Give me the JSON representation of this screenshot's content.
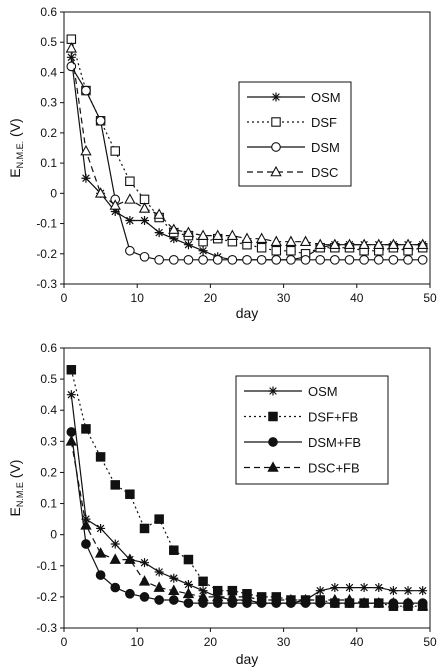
{
  "chart_data": [
    {
      "type": "line",
      "xlabel": "day",
      "ylabel_main": "E",
      "ylabel_sub": "N.M.E.",
      "ylabel_unit": " (V)",
      "xlim": [
        0,
        50
      ],
      "ylim": [
        -0.3,
        0.6
      ],
      "xticks": [
        "0",
        "10",
        "20",
        "30",
        "40",
        "50"
      ],
      "yticks": [
        "0.6",
        "0.5",
        "0.4",
        "0.3",
        "0.2",
        "0.1",
        "0",
        "-0.1",
        "-0.2",
        "-0.3"
      ],
      "grid": false,
      "legend_position": "center-right",
      "series": [
        {
          "name": "OSM",
          "marker": "star",
          "filled": false,
          "dash": "solid",
          "x": [
            1,
            3,
            5,
            7,
            9,
            11,
            13,
            15,
            17,
            19,
            21,
            23,
            25,
            27,
            29,
            31,
            33,
            35,
            37,
            39,
            41,
            43,
            45,
            47,
            49
          ],
          "y": [
            0.45,
            0.05,
            0.0,
            -0.06,
            -0.09,
            -0.09,
            -0.13,
            -0.15,
            -0.17,
            -0.19,
            -0.21,
            -0.22,
            -0.22,
            -0.22,
            -0.22,
            -0.22,
            -0.21,
            -0.18,
            -0.17,
            -0.17,
            -0.17,
            -0.17,
            -0.17,
            -0.17,
            -0.17
          ]
        },
        {
          "name": "DSF",
          "marker": "square",
          "filled": false,
          "dash": "dot",
          "x": [
            1,
            3,
            5,
            7,
            9,
            11,
            13,
            15,
            17,
            19,
            21,
            23,
            25,
            27,
            29,
            31,
            33,
            35,
            37,
            39,
            41,
            43,
            45,
            47,
            49
          ],
          "y": [
            0.51,
            0.34,
            0.24,
            0.14,
            0.04,
            -0.02,
            -0.08,
            -0.13,
            -0.14,
            -0.16,
            -0.15,
            -0.16,
            -0.17,
            -0.18,
            -0.19,
            -0.19,
            -0.2,
            -0.18,
            -0.18,
            -0.18,
            -0.19,
            -0.19,
            -0.18,
            -0.19,
            -0.18
          ]
        },
        {
          "name": "DSM",
          "marker": "circle",
          "filled": false,
          "dash": "solid",
          "x": [
            1,
            3,
            5,
            7,
            9,
            11,
            13,
            15,
            17,
            19,
            21,
            23,
            25,
            27,
            29,
            31,
            33,
            35,
            37,
            39,
            41,
            43,
            45,
            47,
            49
          ],
          "y": [
            0.42,
            0.34,
            0.24,
            -0.02,
            -0.19,
            -0.21,
            -0.22,
            -0.22,
            -0.22,
            -0.22,
            -0.22,
            -0.22,
            -0.22,
            -0.22,
            -0.22,
            -0.22,
            -0.22,
            -0.22,
            -0.22,
            -0.22,
            -0.22,
            -0.22,
            -0.22,
            -0.22,
            -0.22
          ]
        },
        {
          "name": "DSC",
          "marker": "triangle",
          "filled": false,
          "dash": "dash",
          "x": [
            1,
            3,
            5,
            7,
            9,
            11,
            13,
            15,
            17,
            19,
            21,
            23,
            25,
            27,
            29,
            31,
            33,
            35,
            37,
            39,
            41,
            43,
            45,
            47,
            49
          ],
          "y": [
            0.48,
            0.14,
            0.0,
            -0.04,
            -0.02,
            -0.05,
            -0.07,
            -0.12,
            -0.13,
            -0.14,
            -0.14,
            -0.14,
            -0.15,
            -0.15,
            -0.16,
            -0.16,
            -0.16,
            -0.17,
            -0.17,
            -0.17,
            -0.17,
            -0.17,
            -0.17,
            -0.17,
            -0.17
          ]
        }
      ]
    },
    {
      "type": "line",
      "xlabel": "day",
      "ylabel_main": "E",
      "ylabel_sub": "N.M.E",
      "ylabel_unit": " (V)",
      "xlim": [
        0,
        50
      ],
      "ylim": [
        -0.3,
        0.6
      ],
      "xticks": [
        "0",
        "10",
        "20",
        "30",
        "40",
        "50"
      ],
      "yticks": [
        "0.6",
        "0.5",
        "0.4",
        "0.3",
        "0.2",
        "0.1",
        "0",
        "-0.1",
        "-0.2",
        "-0.3"
      ],
      "grid": false,
      "legend_position": "top-right",
      "series": [
        {
          "name": "OSM",
          "marker": "star",
          "filled": false,
          "dash": "solid",
          "x": [
            1,
            3,
            5,
            7,
            9,
            11,
            13,
            15,
            17,
            19,
            21,
            23,
            25,
            27,
            29,
            31,
            33,
            35,
            37,
            39,
            41,
            43,
            45,
            47,
            49
          ],
          "y": [
            0.45,
            0.05,
            0.02,
            -0.03,
            -0.08,
            -0.09,
            -0.12,
            -0.14,
            -0.16,
            -0.18,
            -0.2,
            -0.21,
            -0.21,
            -0.22,
            -0.22,
            -0.22,
            -0.21,
            -0.18,
            -0.17,
            -0.17,
            -0.17,
            -0.17,
            -0.18,
            -0.18,
            -0.18
          ]
        },
        {
          "name": "DSF+FB",
          "marker": "square",
          "filled": true,
          "dash": "dot",
          "x": [
            1,
            3,
            5,
            7,
            9,
            11,
            13,
            15,
            17,
            19,
            21,
            23,
            25,
            27,
            29,
            31,
            33,
            35,
            37,
            39,
            41,
            43,
            45,
            47,
            49
          ],
          "y": [
            0.53,
            0.34,
            0.25,
            0.16,
            0.13,
            0.02,
            0.05,
            -0.05,
            -0.08,
            -0.15,
            -0.18,
            -0.18,
            -0.19,
            -0.2,
            -0.2,
            -0.21,
            -0.21,
            -0.21,
            -0.22,
            -0.22,
            -0.22,
            -0.22,
            -0.23,
            -0.23,
            -0.23
          ]
        },
        {
          "name": "DSM+FB",
          "marker": "circle",
          "filled": true,
          "dash": "solid",
          "x": [
            1,
            3,
            5,
            7,
            9,
            11,
            13,
            15,
            17,
            19,
            21,
            23,
            25,
            27,
            29,
            31,
            33,
            35,
            37,
            39,
            41,
            43,
            45,
            47,
            49
          ],
          "y": [
            0.33,
            -0.03,
            -0.13,
            -0.17,
            -0.19,
            -0.2,
            -0.21,
            -0.21,
            -0.22,
            -0.22,
            -0.22,
            -0.22,
            -0.22,
            -0.22,
            -0.22,
            -0.22,
            -0.22,
            -0.22,
            -0.22,
            -0.22,
            -0.22,
            -0.22,
            -0.22,
            -0.22,
            -0.22
          ]
        },
        {
          "name": "DSC+FB",
          "marker": "triangle",
          "filled": true,
          "dash": "dash",
          "x": [
            1,
            3,
            5,
            7,
            9,
            11,
            13,
            15,
            17,
            19,
            21,
            23,
            25,
            27,
            29,
            31,
            33,
            35,
            37,
            39,
            41,
            43,
            45,
            47,
            49
          ],
          "y": [
            0.3,
            0.03,
            -0.06,
            -0.08,
            -0.08,
            -0.15,
            -0.17,
            -0.18,
            -0.19,
            -0.2,
            -0.2,
            -0.2,
            -0.2,
            -0.21,
            -0.21,
            -0.21,
            -0.21,
            -0.21,
            -0.21,
            -0.21,
            -0.22,
            -0.22,
            -0.22,
            -0.22,
            -0.23
          ]
        }
      ]
    }
  ]
}
